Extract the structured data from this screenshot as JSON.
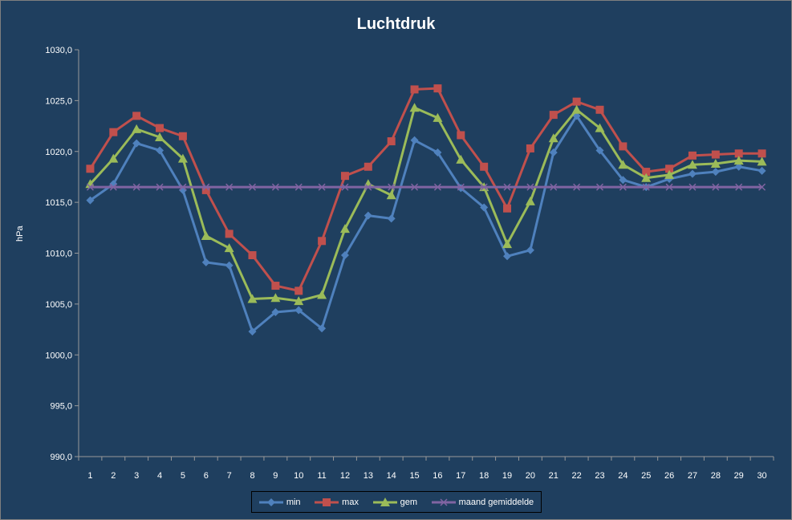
{
  "chart_data": {
    "type": "line",
    "title": "Luchtdruk",
    "ylabel": "hPa",
    "xlabel": "",
    "ylim": [
      990,
      1030
    ],
    "y_ticks": [
      "990,0",
      "995,0",
      "1000,0",
      "1005,0",
      "1010,0",
      "1015,0",
      "1020,0",
      "1025,0",
      "1030,0"
    ],
    "categories": [
      "1",
      "2",
      "3",
      "4",
      "5",
      "6",
      "7",
      "8",
      "9",
      "10",
      "11",
      "12",
      "13",
      "14",
      "15",
      "16",
      "17",
      "18",
      "19",
      "20",
      "21",
      "22",
      "23",
      "24",
      "25",
      "26",
      "27",
      "28",
      "29",
      "30"
    ],
    "legend_position": "bottom",
    "grid": false,
    "series": [
      {
        "name": "min",
        "color": "#4f81bd",
        "marker": "diamond",
        "values": [
          1015.2,
          1016.8,
          1020.8,
          1020.1,
          1016.2,
          1009.1,
          1008.8,
          1002.3,
          1004.2,
          1004.4,
          1002.6,
          1009.8,
          1013.7,
          1013.4,
          1021.1,
          1019.9,
          1016.4,
          1014.5,
          1009.7,
          1010.3,
          1019.9,
          1023.5,
          1020.1,
          1017.2,
          1016.5,
          1017.3,
          1017.8,
          1018.0,
          1018.5,
          1018.1
        ]
      },
      {
        "name": "max",
        "color": "#c0504d",
        "marker": "square",
        "values": [
          1018.3,
          1021.9,
          1023.5,
          1022.3,
          1021.5,
          1016.2,
          1011.9,
          1009.8,
          1006.8,
          1006.3,
          1011.2,
          1017.6,
          1018.5,
          1021.0,
          1026.1,
          1026.2,
          1021.6,
          1018.5,
          1014.4,
          1020.3,
          1023.6,
          1024.9,
          1024.1,
          1020.5,
          1018.0,
          1018.3,
          1019.6,
          1019.7,
          1019.8,
          1019.8
        ]
      },
      {
        "name": "gem",
        "color": "#9bbb59",
        "marker": "triangle",
        "values": [
          1016.8,
          1019.3,
          1022.2,
          1021.4,
          1019.3,
          1011.7,
          1010.5,
          1005.5,
          1005.6,
          1005.3,
          1005.9,
          1012.4,
          1016.8,
          1015.7,
          1024.3,
          1023.3,
          1019.2,
          1016.5,
          1010.9,
          1015.1,
          1021.3,
          1024.1,
          1022.3,
          1018.7,
          1017.4,
          1017.7,
          1018.7,
          1018.8,
          1019.1,
          1019.0
        ]
      },
      {
        "name": "maand gemiddelde",
        "color": "#8064a2",
        "marker": "x",
        "values": [
          1016.5,
          1016.5,
          1016.5,
          1016.5,
          1016.5,
          1016.5,
          1016.5,
          1016.5,
          1016.5,
          1016.5,
          1016.5,
          1016.5,
          1016.5,
          1016.5,
          1016.5,
          1016.5,
          1016.5,
          1016.5,
          1016.5,
          1016.5,
          1016.5,
          1016.5,
          1016.5,
          1016.5,
          1016.5,
          1016.5,
          1016.5,
          1016.5,
          1016.5,
          1016.5
        ]
      }
    ]
  }
}
